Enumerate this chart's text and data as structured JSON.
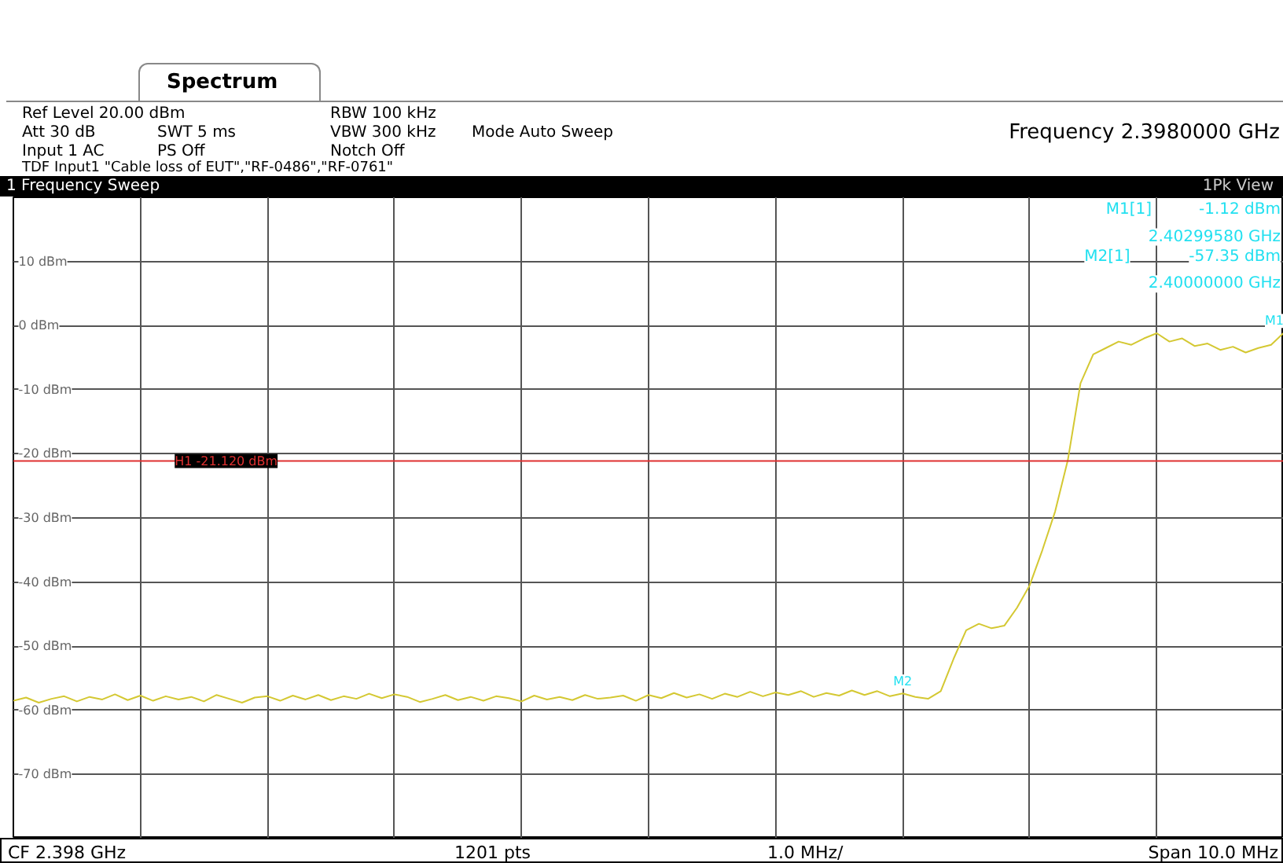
{
  "chart_data": {
    "type": "line",
    "title": "1 Frequency Sweep",
    "categories": [
      null,
      null,
      null,
      null,
      null,
      null,
      null,
      null,
      null,
      null,
      null,
      null,
      null,
      null,
      null,
      null,
      null,
      null,
      null,
      null,
      null,
      null,
      null,
      null,
      null,
      null,
      null,
      null,
      null,
      null,
      null,
      null,
      null,
      null,
      null,
      null,
      null,
      null,
      null,
      null,
      null,
      null,
      null,
      null,
      null,
      null,
      null,
      null,
      null,
      null,
      null,
      null,
      null,
      null,
      null,
      null,
      null,
      null,
      null,
      null,
      null,
      null,
      null,
      null,
      null,
      null,
      null,
      null,
      null,
      null,
      null,
      null,
      null,
      null,
      null,
      null,
      null,
      null,
      null,
      null,
      null,
      null,
      null,
      null,
      null,
      null,
      null,
      null,
      null,
      null,
      null,
      null,
      null,
      null,
      null,
      null,
      null,
      null,
      null,
      null,
      null
    ],
    "series": [
      {
        "color": "#d4c832",
        "values": [
          -58.5,
          -58.0,
          -58.8,
          -58.2,
          -57.8,
          -58.6,
          -57.9,
          -58.3,
          -57.5,
          -58.4,
          -57.7,
          -58.5,
          -57.8,
          -58.3,
          -57.9,
          -58.6,
          -57.6,
          -58.2,
          -58.8,
          -58.0,
          -57.8,
          -58.5,
          -57.7,
          -58.3,
          -57.6,
          -58.4,
          -57.8,
          -58.2,
          -57.4,
          -58.1,
          -57.5,
          -57.9,
          -58.7,
          -58.2,
          -57.6,
          -58.4,
          -57.9,
          -58.5,
          -57.8,
          -58.1,
          -58.6,
          -57.7,
          -58.3,
          -57.9,
          -58.4,
          -57.6,
          -58.2,
          -58.0,
          -57.7,
          -58.5,
          -57.6,
          -58.1,
          -57.3,
          -58.0,
          -57.5,
          -58.2,
          -57.4,
          -57.9,
          -57.1,
          -57.8,
          -57.2,
          -57.6,
          -57.0,
          -57.9,
          -57.3,
          -57.7,
          -56.9,
          -57.6,
          -57.0,
          -57.8,
          -57.35,
          -57.9,
          -58.2,
          -57.0,
          -52.0,
          -47.5,
          -46.5,
          -47.2,
          -46.8,
          -44.0,
          -40.5,
          -35.0,
          -29.0,
          -21.0,
          -9.0,
          -4.5,
          -3.5,
          -2.5,
          -3.0,
          -2.0,
          -1.2,
          -2.5,
          -2.0,
          -3.2,
          -2.8,
          -3.8,
          -3.3,
          -4.2,
          -3.5,
          -3.0,
          -1.12
        ]
      }
    ],
    "ylim": [
      -80,
      20
    ],
    "yticks": [
      {
        "value": 10,
        "label": "10 dBm"
      },
      {
        "value": 0,
        "label": "0 dBm"
      },
      {
        "value": -10,
        "label": "-10 dBm"
      },
      {
        "value": -20,
        "label": "-20 dBm"
      },
      {
        "value": -30,
        "label": "-30 dBm"
      },
      {
        "value": -40,
        "label": "-40 dBm"
      },
      {
        "value": -50,
        "label": "-50 dBm"
      },
      {
        "value": -60,
        "label": "-60 dBm"
      },
      {
        "value": -70,
        "label": "-70 dBm"
      }
    ],
    "grid": true,
    "line_style": "solid",
    "ref_lines": [
      {
        "axis": "y",
        "value": -21.12,
        "label": "H1 -21.120 dBm",
        "color": "#e03030"
      }
    ],
    "annotations": [
      "Spectrum",
      "Ref Level 20.00 dBm",
      "Att 30 dB",
      "Input 1 AC",
      "SWT 5 ms",
      "PS Off",
      "RBW 100 kHz",
      "VBW 300 kHz",
      "Notch Off",
      "Mode Auto Sweep",
      "TDF Input1 \"Cable loss of EUT\",\"RF-0486\",\"RF-0761\"",
      "Frequency 2.3980000 GHz",
      "1Pk View",
      "M1[1]",
      "-1.12 dBm",
      "2.40299580 GHz",
      "M2[1]",
      "-57.35 dBm",
      "2.40000000 GHz",
      "CF 2.398 GHz",
      "1201 pts",
      "1.0 MHz/",
      "Span 10.0 MHz",
      {
        "text": "M1",
        "y": -1.12
      },
      {
        "text": "M2",
        "y": -57.35
      }
    ]
  }
}
